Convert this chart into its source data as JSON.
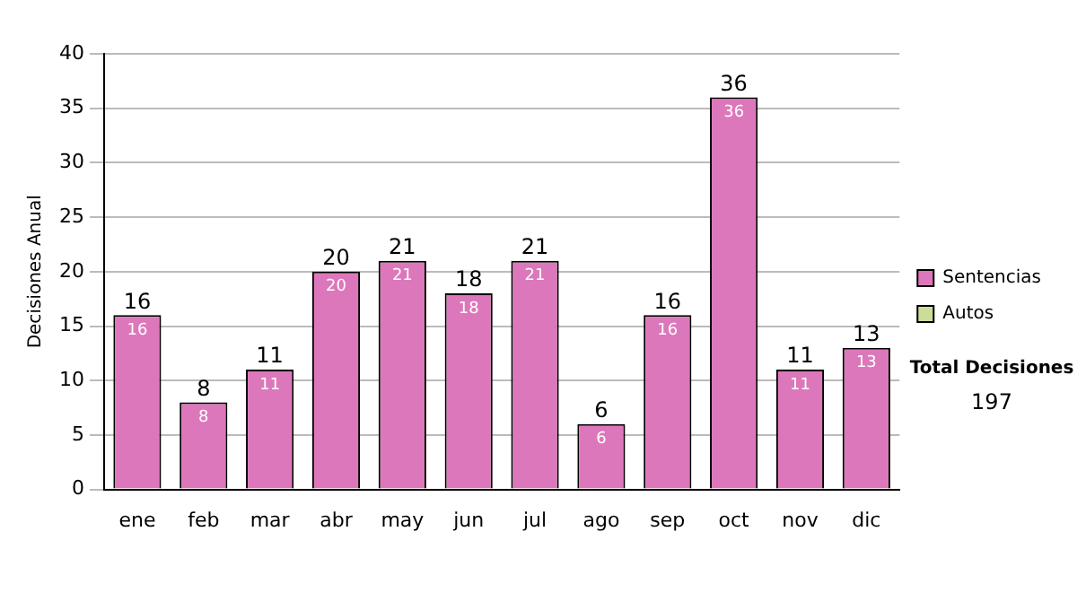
{
  "chart_data": {
    "type": "bar",
    "stacked": true,
    "ylabel": "Decisiones Anual",
    "categories": [
      "ene",
      "feb",
      "mar",
      "abr",
      "may",
      "jun",
      "jul",
      "ago",
      "sep",
      "oct",
      "nov",
      "dic"
    ],
    "series": [
      {
        "name": "Sentencias",
        "color": "#dd77bb",
        "values": [
          16,
          8,
          11,
          20,
          21,
          18,
          21,
          6,
          16,
          36,
          11,
          13
        ],
        "value_labels": [
          "16",
          "8",
          "11",
          "20",
          "21",
          "18",
          "21",
          "6",
          "16",
          "36",
          "11",
          "13"
        ]
      },
      {
        "name": "Autos",
        "color": "#ccdd99",
        "values": [
          0,
          0,
          0,
          0,
          0,
          0,
          0,
          0,
          0,
          0,
          0,
          0
        ]
      }
    ],
    "totals": [
      "16",
      "8",
      "11",
      "20",
      "21",
      "18",
      "21",
      "6",
      "16",
      "36",
      "11",
      "13"
    ],
    "ylim": [
      0,
      40
    ],
    "yticks": [
      0,
      5,
      10,
      15,
      20,
      25,
      30,
      35,
      40
    ],
    "grid": "y",
    "legend": "right",
    "annotations": [
      "Total Decisiones",
      "197"
    ]
  }
}
